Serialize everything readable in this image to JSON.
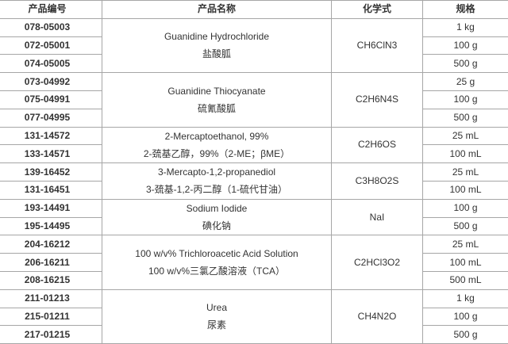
{
  "headers": [
    "产品编号",
    "产品名称",
    "化学式",
    "规格"
  ],
  "groups": [
    {
      "name_en": "Guanidine Hydrochloride",
      "name_cn": "盐酸胍",
      "formula": "CH6ClN3",
      "items": [
        {
          "id": "078-05003",
          "size": "1 kg"
        },
        {
          "id": "072-05001",
          "size": "100 g"
        },
        {
          "id": "074-05005",
          "size": "500 g"
        }
      ]
    },
    {
      "name_en": "Guanidine Thiocyanate",
      "name_cn": "硫氰酸胍",
      "formula": "C2H6N4S",
      "items": [
        {
          "id": "073-04992",
          "size": "25 g"
        },
        {
          "id": "075-04991",
          "size": "100 g"
        },
        {
          "id": "077-04995",
          "size": "500 g"
        }
      ]
    },
    {
      "name_en": "2-Mercaptoethanol, 99%",
      "name_cn": "2-巯基乙醇，99%（2-ME；βME）",
      "formula": "C2H6OS",
      "items": [
        {
          "id": "131-14572",
          "size": "25 mL"
        },
        {
          "id": "133-14571",
          "size": "100 mL"
        }
      ]
    },
    {
      "name_en": "3-Mercapto-1,2-propanediol",
      "name_cn": "3-巯基-1,2-丙二醇（1-硫代甘油）",
      "formula": "C3H8O2S",
      "items": [
        {
          "id": "139-16452",
          "size": "25 mL"
        },
        {
          "id": "131-16451",
          "size": "100 mL"
        }
      ]
    },
    {
      "name_en": "Sodium Iodide",
      "name_cn": "碘化钠",
      "formula": "NaI",
      "items": [
        {
          "id": "193-14491",
          "size": "100 g"
        },
        {
          "id": "195-14495",
          "size": "500 g"
        }
      ]
    },
    {
      "name_en": "100 w/v% Trichloroacetic Acid Solution",
      "name_cn": "100 w/v%三氯乙酸溶液（TCA）",
      "formula": "C2HCl3O2",
      "items": [
        {
          "id": "204-16212",
          "size": "25 mL"
        },
        {
          "id": "206-16211",
          "size": "100 mL"
        },
        {
          "id": "208-16215",
          "size": "500 mL"
        }
      ]
    },
    {
      "name_en": "Urea",
      "name_cn": "尿素",
      "formula": "CH4N2O",
      "items": [
        {
          "id": "211-01213",
          "size": "1 kg"
        },
        {
          "id": "215-01211",
          "size": "100 g"
        },
        {
          "id": "217-01215",
          "size": "500 g"
        }
      ]
    }
  ]
}
